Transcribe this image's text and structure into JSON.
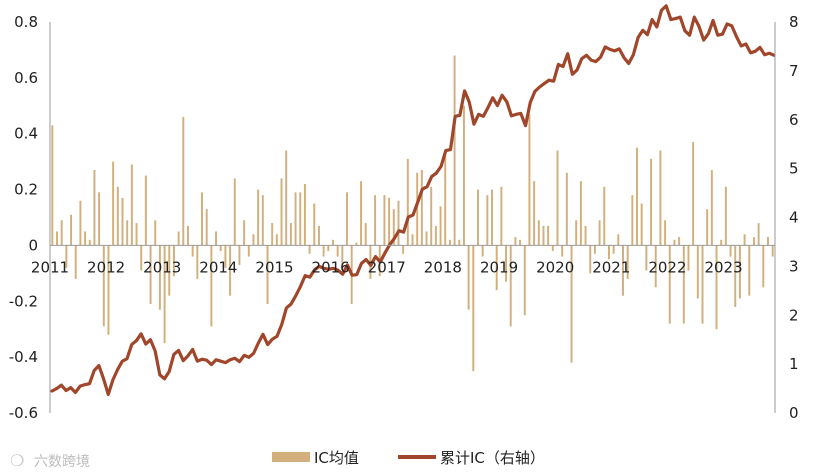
{
  "chart_data": {
    "type": "bar+line",
    "x_ticks": [
      "2011",
      "2012",
      "2013",
      "2014",
      "2015",
      "2016",
      "2017",
      "2018",
      "2019",
      "2020",
      "2021",
      "2022",
      "2023"
    ],
    "y_left": {
      "min": -0.6,
      "max": 0.8,
      "ticks": [
        "-0.6",
        "-0.4",
        "-0.2",
        "0",
        "0.2",
        "0.4",
        "0.6",
        "0.8"
      ]
    },
    "y_right": {
      "min": 0,
      "max": 8,
      "ticks": [
        "0",
        "1",
        "2",
        "3",
        "4",
        "5",
        "6",
        "7",
        "8"
      ]
    },
    "legend": {
      "placement": "bottom",
      "bar_label": "IC均值",
      "line_label": "累计IC（右轴）"
    },
    "colors": {
      "bar": "#d2b07e",
      "line": "#a0462a",
      "axis": "#999999",
      "watermark": "#bdbdbd"
    },
    "series": [
      {
        "name": "IC均值",
        "type": "bar",
        "axis": "left",
        "start": "2011-01",
        "values": [
          0.43,
          0.05,
          0.09,
          -0.08,
          0.11,
          -0.12,
          0.16,
          0.05,
          0.02,
          0.27,
          0.19,
          -0.29,
          -0.32,
          0.3,
          0.21,
          0.17,
          0.09,
          0.29,
          0.08,
          -0.09,
          0.25,
          -0.21,
          0.09,
          -0.23,
          -0.35,
          -0.18,
          -0.11,
          0.05,
          0.46,
          0.07,
          -0.04,
          -0.12,
          0.19,
          0.13,
          -0.29,
          0.05,
          -0.02,
          -0.08,
          -0.18,
          0.24,
          -0.07,
          0.09,
          -0.04,
          0.04,
          0.2,
          0.18,
          -0.21,
          0.08,
          0.04,
          0.24,
          0.34,
          0.08,
          0.19,
          0.19,
          0.22,
          -0.03,
          0.15,
          0.07,
          -0.04,
          -0.02,
          0.02,
          -0.04,
          -0.08,
          0.19,
          -0.21,
          0.01,
          0.23,
          0.08,
          -0.12,
          0.18,
          -0.11,
          0.18,
          0.17,
          0.13,
          0.16,
          -0.03,
          0.31,
          0.04,
          0.26,
          0.27,
          0.05,
          0.21,
          0.07,
          0.14,
          0.32,
          0.02,
          0.68,
          0.02,
          0.5,
          -0.23,
          -0.45,
          0.2,
          -0.04,
          0.18,
          0.2,
          -0.16,
          0.21,
          -0.13,
          -0.29,
          0.03,
          0.02,
          -0.25,
          0.47,
          0.23,
          0.09,
          0.07,
          0.07,
          -0.02,
          0.34,
          -0.04,
          0.26,
          -0.42,
          0.09,
          0.23,
          0.07,
          -0.1,
          -0.03,
          0.09,
          0.21,
          -0.05,
          -0.03,
          0.04,
          -0.18,
          -0.12,
          0.18,
          0.35,
          0.15,
          -0.09,
          0.31,
          -0.15,
          0.34,
          0.09,
          -0.28,
          0.02,
          0.03,
          -0.28,
          -0.09,
          0.37,
          -0.19,
          -0.28,
          0.13,
          0.27,
          -0.3,
          0.02,
          0.21,
          -0.04,
          -0.22,
          -0.19,
          0.04,
          -0.18,
          0.03,
          0.08,
          -0.15,
          0.03,
          -0.04
        ],
        "display_label": "IC均值"
      },
      {
        "name": "累计IC（右轴）",
        "type": "line",
        "axis": "right",
        "start": "2011-01",
        "x_ticks_years": "2011-2023",
        "values": [
          0.45,
          0.5,
          0.57,
          0.46,
          0.52,
          0.42,
          0.55,
          0.58,
          0.6,
          0.87,
          0.97,
          0.7,
          0.38,
          0.68,
          0.89,
          1.06,
          1.11,
          1.4,
          1.48,
          1.62,
          1.41,
          1.5,
          1.27,
          0.78,
          0.7,
          0.85,
          1.2,
          1.28,
          1.07,
          1.17,
          1.3,
          1.06,
          1.1,
          1.08,
          0.99,
          1.09,
          1.06,
          1.03,
          1.09,
          1.12,
          1.05,
          1.18,
          1.14,
          1.22,
          1.43,
          1.61,
          1.4,
          1.51,
          1.57,
          1.81,
          2.15,
          2.23,
          2.4,
          2.59,
          2.81,
          2.78,
          2.93,
          3.0,
          2.96,
          2.94,
          2.96,
          2.92,
          2.84,
          3.03,
          2.82,
          2.83,
          3.06,
          3.14,
          3.02,
          3.2,
          3.09,
          3.27,
          3.44,
          3.57,
          3.73,
          3.7,
          4.01,
          4.05,
          4.31,
          4.58,
          4.63,
          4.84,
          4.91,
          5.05,
          5.37,
          5.39,
          6.07,
          6.09,
          6.59,
          6.36,
          5.91,
          6.11,
          6.07,
          6.25,
          6.45,
          6.29,
          6.5,
          6.37,
          6.08,
          6.11,
          6.13,
          5.88,
          6.35,
          6.58,
          6.67,
          6.74,
          6.81,
          6.79,
          7.13,
          7.09,
          7.35,
          6.93,
          7.02,
          7.25,
          7.32,
          7.22,
          7.19,
          7.28,
          7.49,
          7.44,
          7.41,
          7.45,
          7.27,
          7.15,
          7.33,
          7.68,
          7.83,
          7.74,
          8.05,
          7.9,
          8.24,
          8.33,
          8.05,
          8.07,
          8.1,
          7.82,
          7.73,
          8.1,
          7.91,
          7.63,
          7.76,
          8.03,
          7.73,
          7.75,
          7.96,
          7.92,
          7.7,
          7.51,
          7.55,
          7.37,
          7.4,
          7.48,
          7.33,
          7.36,
          7.32
        ],
        "scale_note": "右轴"
      }
    ]
  },
  "watermark": {
    "text": "六数跨境"
  }
}
